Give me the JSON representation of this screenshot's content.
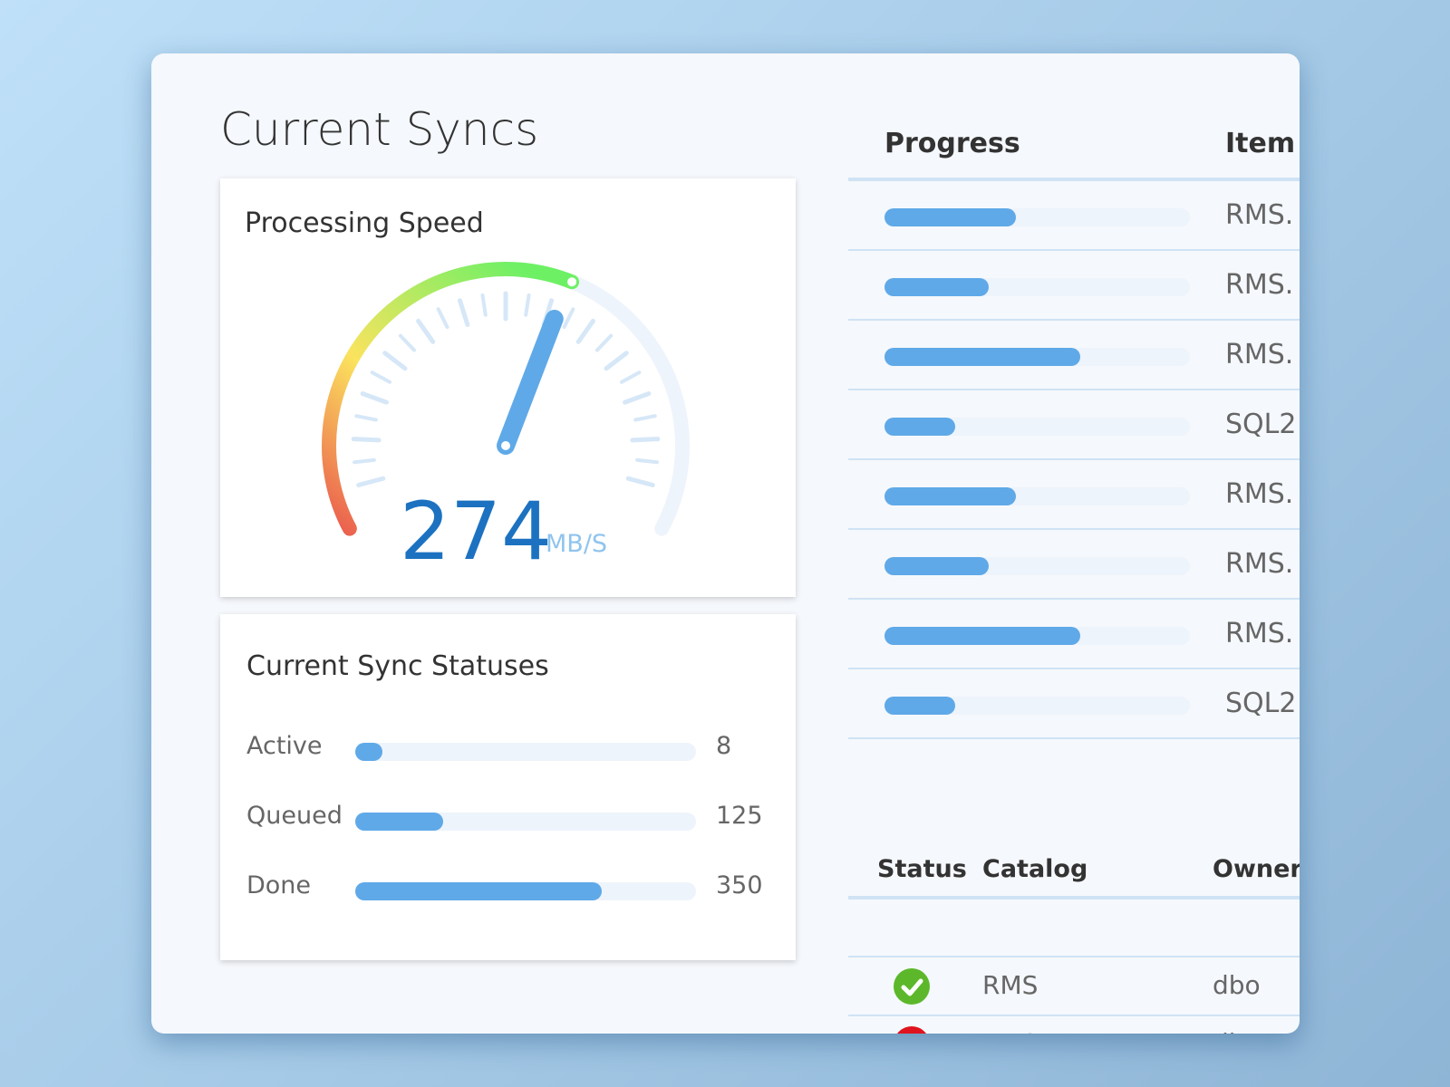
{
  "header": {
    "title": "Current Syncs"
  },
  "speed": {
    "title": "Processing Speed",
    "value": 274,
    "unit": "MB/S"
  },
  "statuses": {
    "title": "Current Sync Statuses",
    "rows": [
      {
        "label": "Active",
        "value": 8
      },
      {
        "label": "Queued",
        "value": 125
      },
      {
        "label": "Done",
        "value": 350
      }
    ]
  },
  "progress_table": {
    "columns": [
      "Progress",
      "Item I"
    ],
    "rows": [
      {
        "progress": 43,
        "item": "RMS."
      },
      {
        "progress": 34,
        "item": "RMS."
      },
      {
        "progress": 64,
        "item": "RMS."
      },
      {
        "progress": 23,
        "item": "SQL2"
      },
      {
        "progress": 43,
        "item": "RMS."
      },
      {
        "progress": 34,
        "item": "RMS."
      },
      {
        "progress": 64,
        "item": "RMS."
      },
      {
        "progress": 23,
        "item": "SQL2"
      }
    ]
  },
  "sync_table": {
    "columns": [
      "Status",
      "Catalog",
      "Owner"
    ],
    "rows": [
      {
        "catalog": "RMS",
        "owner": "dbo"
      },
      {
        "catalog": "RMS",
        "owner": "dbo"
      }
    ]
  }
}
